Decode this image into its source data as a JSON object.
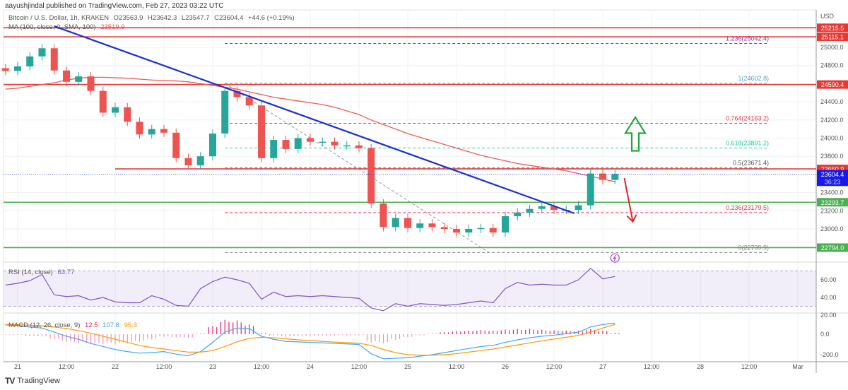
{
  "header": {
    "published": "aayushjindal published on TradingView.com, Feb 27, 2023 03:22 UTC",
    "symbol": "Bitcoin / U.S. Dollar, 1h, KRAKEN",
    "open": "O23563.9",
    "high": "H23642.3",
    "low": "L23547.7",
    "close": "C23604.4",
    "change": "+44.6 (+0.19%)",
    "ma_label": "MA (100, close, 0, SMA, 100)",
    "ma_value": "23519.9"
  },
  "footer": {
    "brand": "TradingView",
    "logo": "TV"
  },
  "colors": {
    "up": "#26a69a",
    "down": "#ef5350",
    "ma": "#f05a5a",
    "trendline": "#1a2fd6",
    "rsi": "#7e57c2",
    "macd": "#42a5f5",
    "signal": "#ff9800",
    "hist": "#e91e63",
    "resistance": "#e53935",
    "support": "#4caf50",
    "last_price": "#1a1ae6"
  },
  "chart_data": {
    "type": "candlestick",
    "symbol": "BTCUSD",
    "interval": "1h",
    "exchange": "KRAKEN",
    "currency_label": "USD",
    "ylim": [
      22650,
      25330
    ],
    "y_ticks": [
      "25000.0",
      "24800.0",
      "24400.0",
      "24200.0",
      "24000.0",
      "23800.0",
      "23400.0",
      "23200.0",
      "23000.0"
    ],
    "y_tick_values": [
      25000,
      24800,
      24400,
      24200,
      24000,
      23800,
      23400,
      23200,
      23000
    ],
    "x_ticks": [
      {
        "t": "2023-02-21 00:00",
        "label": "21"
      },
      {
        "t": "2023-02-21 12:00",
        "label": "12:00"
      },
      {
        "t": "2023-02-22 00:00",
        "label": "22"
      },
      {
        "t": "2023-02-22 12:00",
        "label": "12:00"
      },
      {
        "t": "2023-02-23 00:00",
        "label": "23"
      },
      {
        "t": "2023-02-23 12:00",
        "label": "12:00"
      },
      {
        "t": "2023-02-24 00:00",
        "label": "24"
      },
      {
        "t": "2023-02-24 12:00",
        "label": "12:00"
      },
      {
        "t": "2023-02-25 00:00",
        "label": "25"
      },
      {
        "t": "2023-02-25 12:00",
        "label": "12:00"
      },
      {
        "t": "2023-02-26 00:00",
        "label": "26"
      },
      {
        "t": "2023-02-26 12:00",
        "label": "12:00"
      },
      {
        "t": "2023-02-27 00:00",
        "label": "27"
      },
      {
        "t": "2023-02-27 12:00",
        "label": "12:00"
      },
      {
        "t": "2023-02-28 00:00",
        "label": "28"
      },
      {
        "t": "2023-02-28 12:00",
        "label": "12:00"
      },
      {
        "t": "2023-03-01 00:00",
        "label": "Mar"
      }
    ],
    "times": [
      "2023-02-20 21:00",
      "2023-02-21 00:00",
      "2023-02-21 03:00",
      "2023-02-21 06:00",
      "2023-02-21 09:00",
      "2023-02-21 12:00",
      "2023-02-21 15:00",
      "2023-02-21 18:00",
      "2023-02-21 21:00",
      "2023-02-22 00:00",
      "2023-02-22 03:00",
      "2023-02-22 06:00",
      "2023-02-22 09:00",
      "2023-02-22 12:00",
      "2023-02-22 15:00",
      "2023-02-22 18:00",
      "2023-02-22 21:00",
      "2023-02-23 00:00",
      "2023-02-23 03:00",
      "2023-02-23 06:00",
      "2023-02-23 09:00",
      "2023-02-23 12:00",
      "2023-02-23 15:00",
      "2023-02-23 18:00",
      "2023-02-23 21:00",
      "2023-02-24 00:00",
      "2023-02-24 03:00",
      "2023-02-24 06:00",
      "2023-02-24 09:00",
      "2023-02-24 12:00",
      "2023-02-24 15:00",
      "2023-02-24 18:00",
      "2023-02-24 21:00",
      "2023-02-25 00:00",
      "2023-02-25 03:00",
      "2023-02-25 06:00",
      "2023-02-25 09:00",
      "2023-02-25 12:00",
      "2023-02-25 15:00",
      "2023-02-25 18:00",
      "2023-02-25 21:00",
      "2023-02-26 00:00",
      "2023-02-26 03:00",
      "2023-02-26 06:00",
      "2023-02-26 09:00",
      "2023-02-26 12:00",
      "2023-02-26 15:00",
      "2023-02-26 18:00",
      "2023-02-26 21:00",
      "2023-02-27 00:00",
      "2023-02-27 03:00"
    ],
    "close": [
      24740,
      24790,
      24900,
      24990,
      24745,
      24620,
      24680,
      24520,
      24280,
      24340,
      24180,
      24040,
      24100,
      24060,
      23780,
      23700,
      23800,
      24050,
      24520,
      24450,
      24360,
      23780,
      23980,
      23880,
      24000,
      23960,
      23960,
      23920,
      23920,
      23890,
      23280,
      23020,
      23120,
      23010,
      23060,
      23020,
      23000,
      22960,
      23000,
      23010,
      22960,
      23140,
      23180,
      23220,
      23250,
      23210,
      23210,
      23260,
      23610,
      23540,
      23604.4
    ],
    "ma100": [
      24540,
      24550,
      24570,
      24590,
      24610,
      24640,
      24660,
      24670,
      24670,
      24665,
      24660,
      24650,
      24640,
      24635,
      24630,
      24620,
      24600,
      24580,
      24560,
      24540,
      24510,
      24480,
      24450,
      24430,
      24410,
      24390,
      24370,
      24340,
      24300,
      24260,
      24200,
      24150,
      24100,
      24050,
      24010,
      23970,
      23930,
      23890,
      23850,
      23810,
      23780,
      23750,
      23720,
      23700,
      23680,
      23660,
      23640,
      23610,
      23580,
      23550,
      23519.9
    ],
    "levels": [
      {
        "price": 25215.5,
        "label": "25215.5",
        "kind": "resistance",
        "from": "2023-02-20 20:00"
      },
      {
        "price": 25115.1,
        "label": "25115.1",
        "kind": "resistance",
        "from": "2023-02-20 20:00"
      },
      {
        "price": 24590.4,
        "label": "24590.4",
        "kind": "resistance",
        "from": "2023-02-20 20:00"
      },
      {
        "price": 23660.9,
        "label": "23660.9",
        "kind": "resistance",
        "from": "2023-02-22 00:00"
      },
      {
        "price": 23293.7,
        "label": "23293.7",
        "kind": "support",
        "from": "2023-02-20 20:00"
      },
      {
        "price": 22794.0,
        "label": "22794.0",
        "kind": "support",
        "from": "2023-02-20 20:00"
      }
    ],
    "last_price": {
      "price": 23604.4,
      "label": "23604.4",
      "countdown": "36:23"
    },
    "trendline": {
      "from": {
        "t": "2023-02-21 09:00",
        "price": 25233
      },
      "to": {
        "t": "2023-02-26 17:00",
        "price": 23171
      }
    },
    "fib_swing": {
      "from": {
        "t": "2023-02-23 03:00",
        "price": 24602.8
      },
      "to": {
        "t": "2023-02-25 20:00",
        "price": 22739.9
      }
    },
    "fib_levels": [
      {
        "ratio": "1.236",
        "price": 25042.4,
        "label": "1.236(25042.4)",
        "color": "#9c27b0"
      },
      {
        "ratio": "1",
        "price": 24602.8,
        "label": "1(24602.8)",
        "color": "#5b9bd5"
      },
      {
        "ratio": "0.764",
        "price": 24163.2,
        "label": "0.764(24163.2)",
        "color": "#e53950"
      },
      {
        "ratio": "0.618",
        "price": 23891.2,
        "label": "0.618(23891.2)",
        "color": "#26c6a0"
      },
      {
        "ratio": "0.5",
        "price": 23671.4,
        "label": "0.5(23671.4)",
        "color": "#555555"
      },
      {
        "ratio": "0.236",
        "price": 23179.5,
        "label": "0.236(23179.5)",
        "color": "#e53950"
      },
      {
        "ratio": "0",
        "price": 22739.9,
        "label": "0(22739.9)",
        "color": "#888888"
      }
    ],
    "annotations": [
      {
        "type": "arrow-up",
        "color": "#1fa83a",
        "t": "2023-02-27 08:00",
        "price_from": 23860,
        "price_to": 24230
      },
      {
        "type": "arrow-down",
        "color": "#e32626",
        "t": "2023-02-27 06:00",
        "price_from": 23560,
        "price_to": 23080
      },
      {
        "type": "lightning-icon",
        "t": "2023-02-27 03:00",
        "price": 22680
      }
    ],
    "rsi": {
      "label": "RSI (14, close)",
      "value": "63.77",
      "band": [
        30,
        70
      ],
      "ticks": [
        "60.00",
        "40.00",
        "20.00"
      ],
      "tick_values": [
        60,
        40,
        20
      ],
      "values": [
        54,
        56,
        59,
        66,
        43,
        41,
        42,
        37,
        40,
        35,
        34,
        34,
        42,
        38,
        31,
        30,
        50,
        58,
        63,
        60,
        56,
        38,
        46,
        41,
        42,
        41,
        42,
        41,
        40,
        39,
        28,
        25,
        33,
        30,
        33,
        32,
        31,
        32,
        34,
        36,
        34,
        50,
        57,
        54,
        55,
        54,
        54,
        60,
        73,
        61,
        63.77
      ]
    },
    "macd": {
      "label": "MACD (12, 26, close, 9)",
      "hist_value": "12.5",
      "macd_value": "107.8",
      "signal_value": "95.3",
      "ticks": [
        "0.0",
        "-200.0"
      ],
      "tick_values": [
        0,
        -200
      ],
      "macd_values": [
        90,
        85,
        70,
        60,
        20,
        -20,
        -50,
        -90,
        -120,
        -150,
        -170,
        -185,
        -180,
        -170,
        -195,
        -210,
        -170,
        -80,
        20,
        60,
        55,
        -20,
        -50,
        -70,
        -75,
        -80,
        -85,
        -90,
        -95,
        -100,
        -190,
        -240,
        -235,
        -230,
        -215,
        -200,
        -180,
        -160,
        -140,
        -120,
        -110,
        -80,
        -55,
        -35,
        -20,
        -10,
        5,
        20,
        70,
        95,
        107.8
      ],
      "signal_values": [
        95,
        92,
        88,
        82,
        70,
        55,
        35,
        10,
        -20,
        -50,
        -80,
        -110,
        -130,
        -145,
        -160,
        -175,
        -175,
        -160,
        -120,
        -75,
        -40,
        -30,
        -35,
        -45,
        -55,
        -62,
        -70,
        -77,
        -83,
        -88,
        -110,
        -150,
        -180,
        -200,
        -205,
        -205,
        -200,
        -190,
        -175,
        -160,
        -145,
        -125,
        -105,
        -85,
        -65,
        -48,
        -30,
        -12,
        20,
        60,
        95.3
      ]
    }
  }
}
